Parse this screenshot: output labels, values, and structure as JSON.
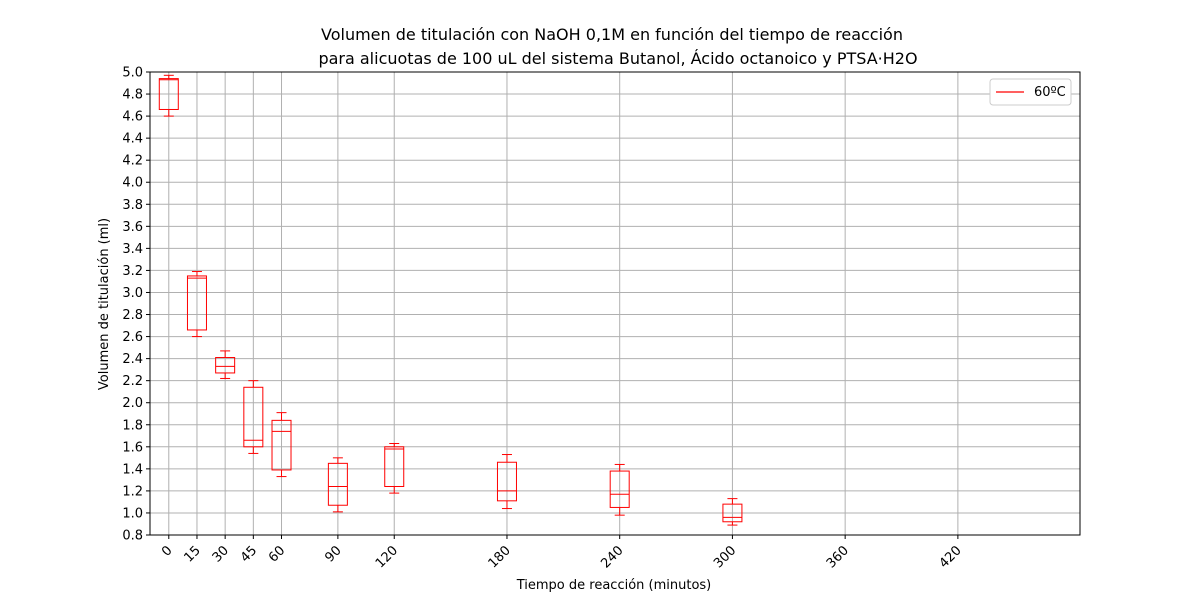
{
  "chart_data": {
    "type": "box",
    "title_line1": "Volumen de titulación con NaOH 0,1M en función del tiempo de reacción",
    "title_line2": "para alicuotas de 100 uL del sistema Butanol, Ácido octanoico y PTSA·H2O",
    "xlabel": "Tiempo de reacción (minutos)",
    "ylabel": "Volumen de titulación (ml)",
    "xlim": [
      -10,
      485
    ],
    "ylim": [
      0.8,
      5.0
    ],
    "x_ticks": [
      0,
      15,
      30,
      45,
      60,
      90,
      120,
      180,
      240,
      300,
      360,
      420
    ],
    "y_ticks": [
      "0.8",
      "1.0",
      "1.2",
      "1.4",
      "1.6",
      "1.8",
      "2.0",
      "2.2",
      "2.4",
      "2.6",
      "2.8",
      "3.0",
      "3.2",
      "3.4",
      "3.6",
      "3.8",
      "4.0",
      "4.2",
      "4.4",
      "4.6",
      "4.8",
      "5.0"
    ],
    "grid": true,
    "legend_position": "top-right",
    "series": [
      {
        "name": "60ºC",
        "color": "#ff0000",
        "boxes": [
          {
            "x": 0,
            "whisker_low": 4.6,
            "q1": 4.66,
            "median": 4.93,
            "q3": 4.94,
            "whisker_high": 4.97
          },
          {
            "x": 15,
            "whisker_low": 2.6,
            "q1": 2.66,
            "median": 3.13,
            "q3": 3.15,
            "whisker_high": 3.19
          },
          {
            "x": 30,
            "whisker_low": 2.22,
            "q1": 2.27,
            "median": 2.33,
            "q3": 2.41,
            "whisker_high": 2.47
          },
          {
            "x": 45,
            "whisker_low": 1.54,
            "q1": 1.6,
            "median": 1.66,
            "q3": 2.14,
            "whisker_high": 2.2
          },
          {
            "x": 60,
            "whisker_low": 1.33,
            "q1": 1.39,
            "median": 1.74,
            "q3": 1.84,
            "whisker_high": 1.91
          },
          {
            "x": 90,
            "whisker_low": 1.01,
            "q1": 1.07,
            "median": 1.24,
            "q3": 1.45,
            "whisker_high": 1.5
          },
          {
            "x": 120,
            "whisker_low": 1.18,
            "q1": 1.24,
            "median": 1.58,
            "q3": 1.6,
            "whisker_high": 1.63
          },
          {
            "x": 180,
            "whisker_low": 1.04,
            "q1": 1.11,
            "median": 1.2,
            "q3": 1.46,
            "whisker_high": 1.53
          },
          {
            "x": 240,
            "whisker_low": 0.98,
            "q1": 1.05,
            "median": 1.17,
            "q3": 1.38,
            "whisker_high": 1.44
          },
          {
            "x": 300,
            "whisker_low": 0.89,
            "q1": 0.92,
            "median": 0.96,
            "q3": 1.08,
            "whisker_high": 1.13
          }
        ]
      }
    ]
  }
}
